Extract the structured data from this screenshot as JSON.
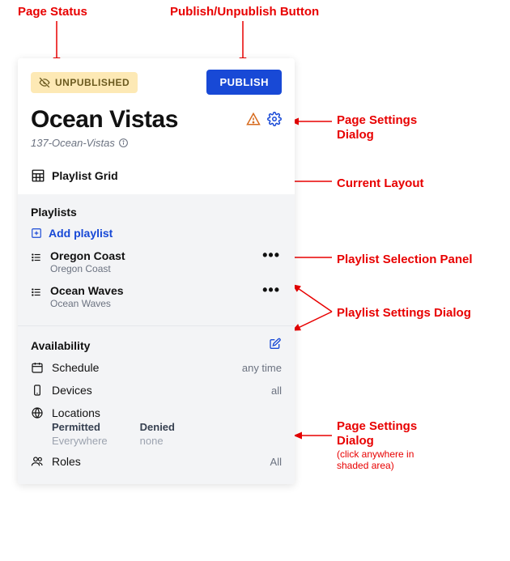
{
  "colors": {
    "badge_bg": "#fde9b5",
    "badge_fg": "#6b5a1f",
    "publish_bg": "#1849d6",
    "publish_fg": "#ffffff",
    "accent": "#1849d6",
    "warn": "#d66a1d",
    "anno": "#e80000"
  },
  "status": {
    "label": "UNPUBLISHED"
  },
  "publish_button": {
    "label": "PUBLISH"
  },
  "title": "Ocean Vistas",
  "slug": "137-Ocean-Vistas",
  "layout": {
    "label": "Playlist Grid"
  },
  "playlists": {
    "title": "Playlists",
    "add_label": "Add playlist",
    "items": [
      {
        "title": "Oregon Coast",
        "subtitle": "Oregon Coast"
      },
      {
        "title": "Ocean Waves",
        "subtitle": "Ocean Waves"
      }
    ]
  },
  "availability": {
    "title": "Availability",
    "rows": {
      "schedule": {
        "label": "Schedule",
        "value": "any time"
      },
      "devices": {
        "label": "Devices",
        "value": "all"
      },
      "locations": {
        "label": "Locations",
        "permitted_h": "Permitted",
        "permitted_v": "Everywhere",
        "denied_h": "Denied",
        "denied_v": "none"
      },
      "roles": {
        "label": "Roles",
        "value": "All"
      }
    }
  },
  "annotations": {
    "page_status": "Page Status",
    "publish_btn": "Publish/Unpublish Button",
    "settings_dialog": "Page Settings\nDialog",
    "current_layout": "Current Layout",
    "playlist_panel": "Playlist Selection Panel",
    "playlist_settings": "Playlist Settings Dialog",
    "avail_dialog": "Page Settings\nDialog",
    "avail_sub": "(click anywhere in\nshaded area)"
  }
}
